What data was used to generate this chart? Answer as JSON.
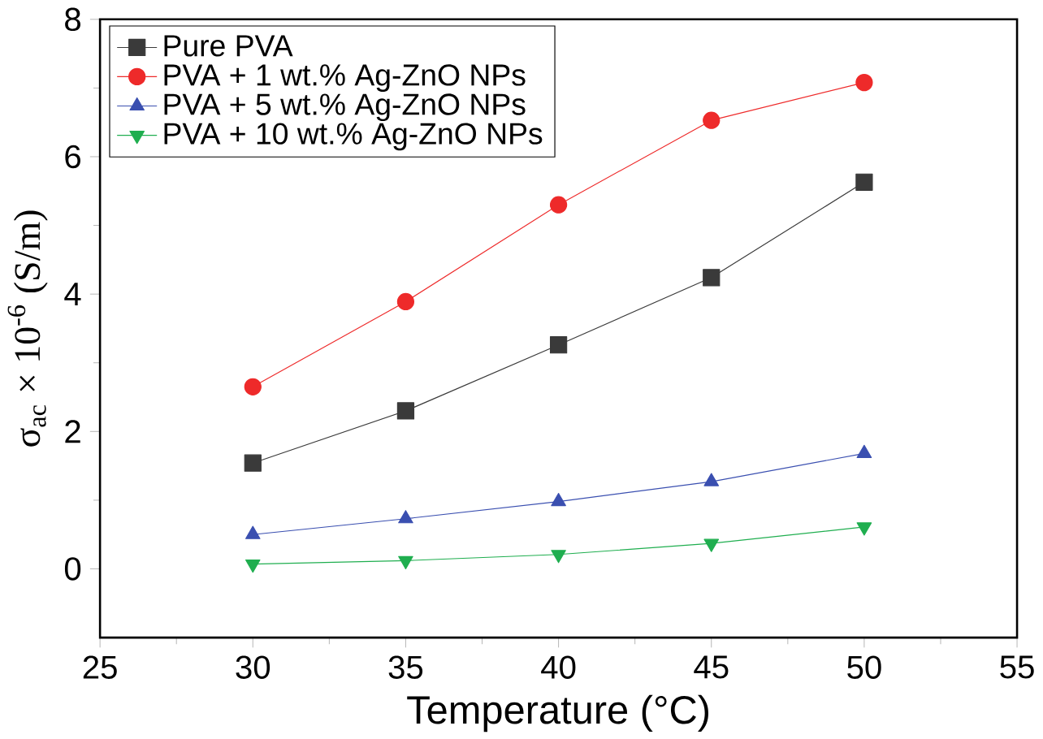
{
  "chart_data": {
    "type": "line",
    "xlabel": "Temperature (°C)",
    "ylabel": "σ$_{ac}$ × 10$^{-6}$ (S/m)",
    "x": [
      30,
      35,
      40,
      45,
      50
    ],
    "series": [
      {
        "name": "Pure PVA",
        "color": "#3a3a3a",
        "marker": "square",
        "values": [
          1.54,
          2.3,
          3.26,
          4.24,
          5.63
        ]
      },
      {
        "name": "PVA + 1 wt.% Ag-ZnO NPs",
        "color": "#ee2a2a",
        "marker": "circle",
        "values": [
          2.65,
          3.89,
          5.3,
          6.53,
          7.08
        ]
      },
      {
        "name": "PVA + 5 wt.% Ag-ZnO NPs",
        "color": "#3a4fb0",
        "marker": "triangle",
        "values": [
          0.5,
          0.73,
          0.98,
          1.27,
          1.68
        ]
      },
      {
        "name": "PVA + 10 wt.% Ag-ZnO NPs",
        "color": "#1fae4f",
        "marker": "triangle down",
        "values": [
          0.07,
          0.12,
          0.21,
          0.37,
          0.61
        ]
      }
    ],
    "xlim": [
      25,
      55
    ],
    "xticks": [
      25,
      30,
      35,
      40,
      45,
      50,
      55
    ],
    "ylim": [
      -1,
      8
    ],
    "yticks": [
      0,
      2,
      4,
      6,
      8
    ],
    "grid": false,
    "legend": "top left",
    "line_style": "solid"
  }
}
